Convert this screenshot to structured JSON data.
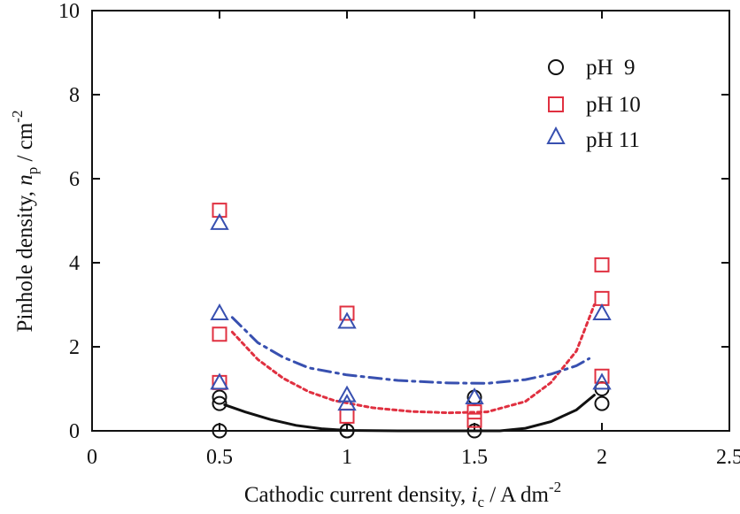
{
  "chart_data": {
    "type": "scatter",
    "xlabel": {
      "prefix": "Cathodic current density, ",
      "symbol": "i",
      "subscript": "c",
      "unit": " / A dm",
      "superscript": "-2"
    },
    "ylabel": {
      "prefix": "Pinhole density, ",
      "symbol": "n",
      "subscript": "p",
      "unit": " / cm",
      "superscript": "-2"
    },
    "xlim": [
      0,
      2.5
    ],
    "ylim": [
      0,
      10
    ],
    "xticks": [
      0,
      0.5,
      1,
      1.5,
      2,
      2.5
    ],
    "xtick_labels": [
      "0",
      "0.5",
      "1",
      "1.5",
      "2",
      "2.5"
    ],
    "yticks": [
      0,
      2,
      4,
      6,
      8,
      10
    ],
    "ytick_labels": [
      "0",
      "2",
      "4",
      "6",
      "8",
      "10"
    ],
    "grid": false,
    "legend_position": "top-right",
    "series": [
      {
        "name": "pH  9",
        "marker": "circle",
        "color": "#111111",
        "points": [
          [
            0.5,
            0.0
          ],
          [
            0.5,
            0.65
          ],
          [
            0.5,
            0.8
          ],
          [
            1.0,
            0.0
          ],
          [
            1.0,
            0.0
          ],
          [
            1.5,
            0.0
          ],
          [
            1.5,
            0.8
          ],
          [
            2.0,
            0.65
          ],
          [
            2.0,
            1.0
          ]
        ],
        "trend": {
          "style": "solid",
          "points": [
            [
              0.52,
              0.62
            ],
            [
              0.6,
              0.45
            ],
            [
              0.7,
              0.27
            ],
            [
              0.8,
              0.13
            ],
            [
              0.9,
              0.05
            ],
            [
              1.0,
              0.01
            ],
            [
              1.2,
              0.0
            ],
            [
              1.4,
              0.0
            ],
            [
              1.6,
              0.0
            ],
            [
              1.7,
              0.06
            ],
            [
              1.8,
              0.22
            ],
            [
              1.9,
              0.5
            ],
            [
              1.97,
              0.85
            ]
          ]
        }
      },
      {
        "name": "pH 10",
        "marker": "square",
        "color": "#e03040",
        "points": [
          [
            0.5,
            5.25
          ],
          [
            0.5,
            2.3
          ],
          [
            0.5,
            1.15
          ],
          [
            1.0,
            2.8
          ],
          [
            1.0,
            0.35
          ],
          [
            1.5,
            0.45
          ],
          [
            1.5,
            0.25
          ],
          [
            2.0,
            3.95
          ],
          [
            2.0,
            3.15
          ],
          [
            2.0,
            1.3
          ]
        ],
        "trend": {
          "style": "dotted",
          "points": [
            [
              0.55,
              2.35
            ],
            [
              0.65,
              1.7
            ],
            [
              0.75,
              1.25
            ],
            [
              0.85,
              0.93
            ],
            [
              0.95,
              0.72
            ],
            [
              1.1,
              0.55
            ],
            [
              1.25,
              0.46
            ],
            [
              1.4,
              0.43
            ],
            [
              1.55,
              0.45
            ],
            [
              1.7,
              0.7
            ],
            [
              1.8,
              1.15
            ],
            [
              1.9,
              1.9
            ],
            [
              1.97,
              3.0
            ]
          ]
        }
      },
      {
        "name": "pH 11",
        "marker": "triangle",
        "color": "#3850b0",
        "points": [
          [
            0.5,
            4.95
          ],
          [
            0.5,
            2.8
          ],
          [
            0.5,
            1.15
          ],
          [
            1.0,
            2.6
          ],
          [
            1.0,
            0.85
          ],
          [
            1.0,
            0.65
          ],
          [
            1.5,
            0.8
          ],
          [
            2.0,
            2.8
          ],
          [
            2.0,
            1.15
          ]
        ],
        "trend": {
          "style": "dashdot",
          "points": [
            [
              0.55,
              2.7
            ],
            [
              0.65,
              2.1
            ],
            [
              0.75,
              1.75
            ],
            [
              0.85,
              1.5
            ],
            [
              1.0,
              1.33
            ],
            [
              1.2,
              1.2
            ],
            [
              1.4,
              1.14
            ],
            [
              1.55,
              1.13
            ],
            [
              1.7,
              1.22
            ],
            [
              1.8,
              1.35
            ],
            [
              1.9,
              1.55
            ],
            [
              1.95,
              1.72
            ]
          ]
        }
      }
    ]
  }
}
